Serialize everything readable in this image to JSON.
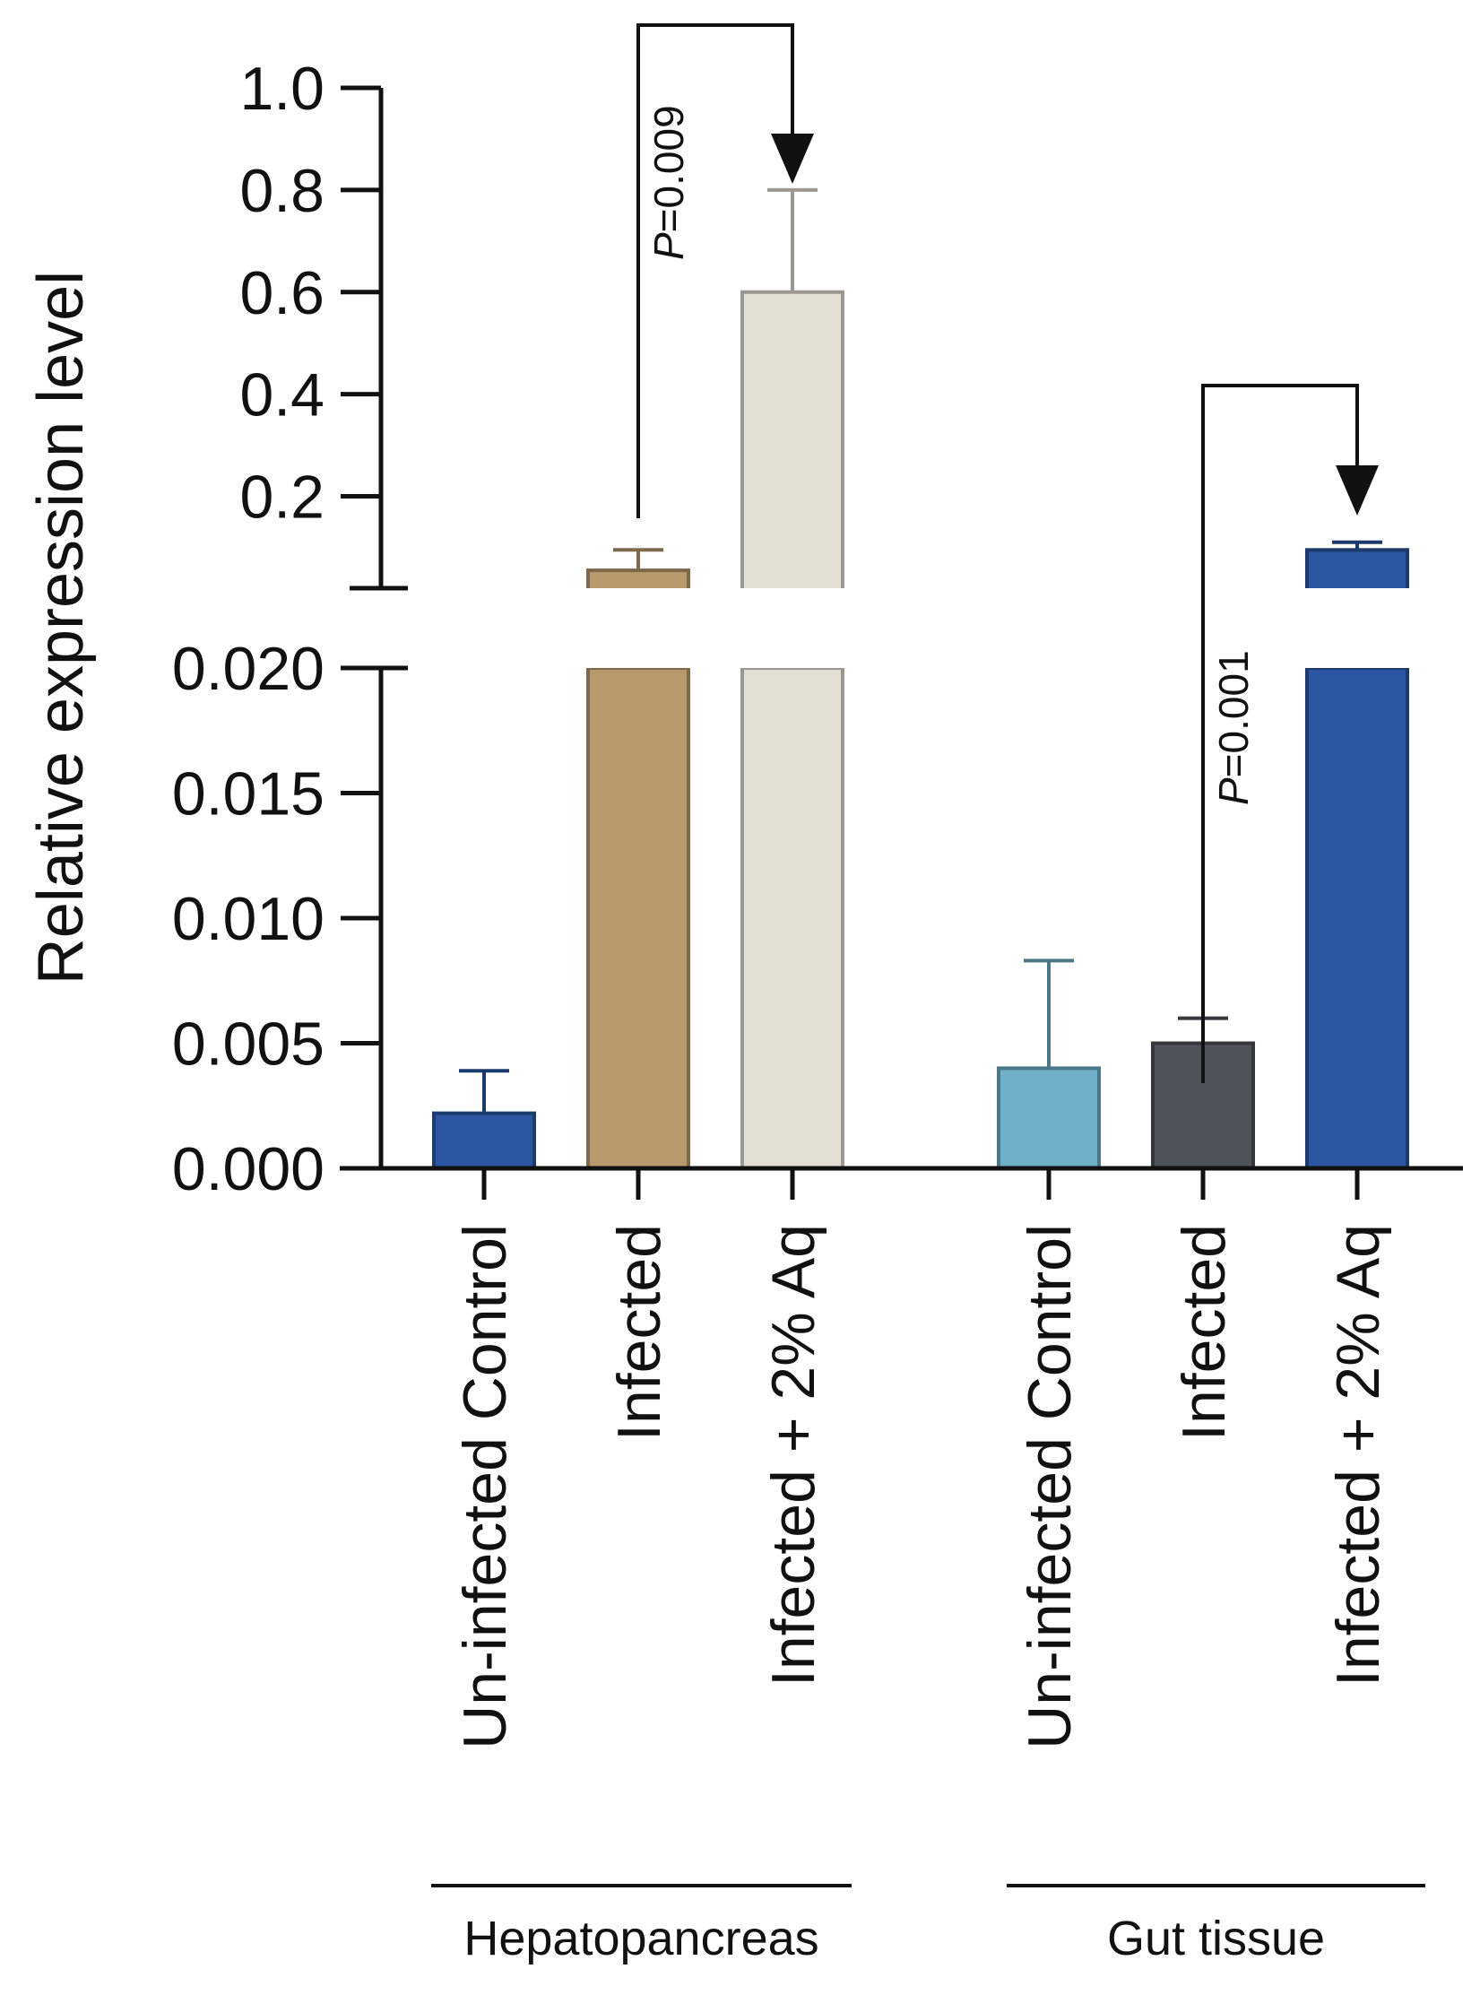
{
  "chart_data": {
    "type": "bar",
    "ylabel": "Relative expression level",
    "yaxis": {
      "broken": true,
      "lower_segment": {
        "range": [
          0,
          0.02
        ],
        "ticks": [
          "0.000",
          "0.005",
          "0.010",
          "0.015",
          "0.020"
        ]
      },
      "upper_segment": {
        "range": [
          0.02,
          1.0
        ],
        "ticks": [
          "0.2",
          "0.4",
          "0.6",
          "0.8",
          "1.0"
        ]
      }
    },
    "groups": [
      {
        "name": "Hepatopancreas",
        "bars": [
          {
            "category": "Un-infected Control",
            "value": 0.0022,
            "error": 0.0017,
            "color": "#2b55a0"
          },
          {
            "category": "Infected",
            "value": 0.055,
            "error": 0.04,
            "color": "#b89a6e"
          },
          {
            "category": "Infected + 2% Aq",
            "value": 0.6,
            "error": 0.2,
            "color": "#e3dfd4"
          }
        ]
      },
      {
        "name": "Gut tissue",
        "bars": [
          {
            "category": "Un-infected Control",
            "value": 0.004,
            "error": 0.0043,
            "color": "#6fb0c9"
          },
          {
            "category": "Infected",
            "value": 0.005,
            "error": 0.001,
            "color": "#4d5358"
          },
          {
            "category": "Infected + 2% Aq",
            "value": 0.095,
            "error": 0.015,
            "color": "#2b55a0"
          }
        ]
      }
    ],
    "comparisons": [
      {
        "group": "Hepatopancreas",
        "from": "Infected",
        "to": "Infected + 2% Aq",
        "p_label": "P",
        "p_value": "=0.009"
      },
      {
        "group": "Gut tissue",
        "from": "Infected",
        "to": "Infected + 2% Aq",
        "p_label": "P",
        "p_value": "=0.001"
      }
    ]
  }
}
